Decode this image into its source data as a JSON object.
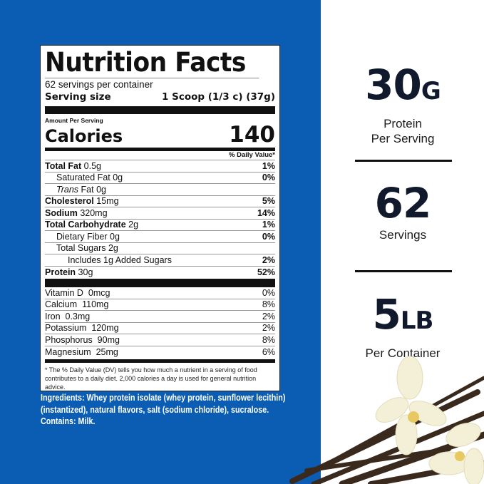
{
  "colors": {
    "background_panel": "#0b5db3",
    "text_dark": "#111a2c"
  },
  "label": {
    "title": "Nutrition Facts",
    "servings_per_container": "62 servings per container",
    "serving_size_label": "Serving size",
    "serving_size_value": "1 Scoop (1/3 c) (37g)",
    "amount_per_serving": "Amount Per Serving",
    "calories_label": "Calories",
    "calories_value": "140",
    "dv_header": "% Daily Value*",
    "nutrients": [
      {
        "name": "Total Fat",
        "amount": "0.5g",
        "dv": "1%"
      },
      {
        "name": "Saturated Fat",
        "amount": "0g",
        "dv": "0%"
      },
      {
        "name": "Trans",
        "name_suffix": "Fat",
        "amount": "0g",
        "dv": ""
      },
      {
        "name": "Cholesterol",
        "amount": "15mg",
        "dv": "5%"
      },
      {
        "name": "Sodium",
        "amount": "320mg",
        "dv": "14%"
      },
      {
        "name": "Total Carbohydrate",
        "amount": "2g",
        "dv": "1%"
      },
      {
        "name": "Dietary Fiber",
        "amount": "0g",
        "dv": "0%"
      },
      {
        "name": "Total Sugars",
        "amount": "2g",
        "dv": ""
      },
      {
        "name": "Includes 1g Added Sugars",
        "amount": "",
        "dv": "2%"
      },
      {
        "name": "Protein",
        "amount": "30g",
        "dv": "52%"
      }
    ],
    "micronutrients": [
      {
        "name": "Vitamin D",
        "amount": "0mcg",
        "dv": "0%"
      },
      {
        "name": "Calcium",
        "amount": "110mg",
        "dv": "8%"
      },
      {
        "name": "Iron",
        "amount": "0.3mg",
        "dv": "2%"
      },
      {
        "name": "Potassium",
        "amount": "120mg",
        "dv": "2%"
      },
      {
        "name": "Phosphorus",
        "amount": "90mg",
        "dv": "8%"
      },
      {
        "name": "Magnesium",
        "amount": "25mg",
        "dv": "6%"
      }
    ],
    "footnote": "* The % Daily Value (DV) tells you how much a nutrient in a serving of food contributes to a daily diet. 2,000 calories a day is used for general nutrition advice."
  },
  "ingredients": "Ingredients: Whey protein isolate (whey protein, sunflower lecithin) (instantized), natural flavors, salt (sodium chloride), sucralose.",
  "contains": "Contains: Milk.",
  "stats": [
    {
      "value": "30",
      "unit": "G",
      "caption_1": "Protein",
      "caption_2": "Per Serving"
    },
    {
      "value": "62",
      "unit": "",
      "caption_1": "Servings",
      "caption_2": ""
    },
    {
      "value": "5",
      "unit": "LB",
      "caption_1": "Per Container",
      "caption_2": ""
    }
  ]
}
